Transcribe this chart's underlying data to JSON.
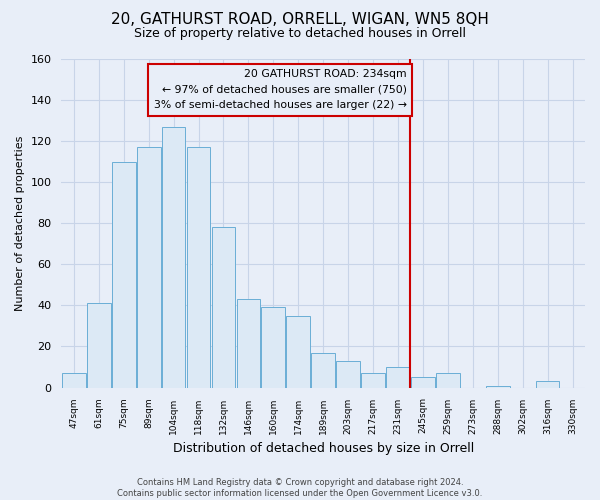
{
  "title": "20, GATHURST ROAD, ORRELL, WIGAN, WN5 8QH",
  "subtitle": "Size of property relative to detached houses in Orrell",
  "xlabel": "Distribution of detached houses by size in Orrell",
  "ylabel": "Number of detached properties",
  "bar_labels": [
    "47sqm",
    "61sqm",
    "75sqm",
    "89sqm",
    "104sqm",
    "118sqm",
    "132sqm",
    "146sqm",
    "160sqm",
    "174sqm",
    "189sqm",
    "203sqm",
    "217sqm",
    "231sqm",
    "245sqm",
    "259sqm",
    "273sqm",
    "288sqm",
    "302sqm",
    "316sqm",
    "330sqm"
  ],
  "bar_values": [
    7,
    41,
    110,
    117,
    127,
    117,
    78,
    43,
    39,
    35,
    17,
    13,
    7,
    10,
    5,
    7,
    0,
    1,
    0,
    3,
    0
  ],
  "bar_color": "#dce9f5",
  "bar_edge_color": "#6aaed6",
  "vline_x_index": 13.5,
  "ylim": [
    0,
    160
  ],
  "yticks": [
    0,
    20,
    40,
    60,
    80,
    100,
    120,
    140,
    160
  ],
  "vline_color": "#cc0000",
  "annotation_title": "20 GATHURST ROAD: 234sqm",
  "annotation_line1": "← 97% of detached houses are smaller (750)",
  "annotation_line2": "3% of semi-detached houses are larger (22) →",
  "footer1": "Contains HM Land Registry data © Crown copyright and database right 2024.",
  "footer2": "Contains public sector information licensed under the Open Government Licence v3.0.",
  "bg_color": "#e8eef8",
  "grid_color": "#c8d4e8",
  "title_fontsize": 11,
  "subtitle_fontsize": 9
}
